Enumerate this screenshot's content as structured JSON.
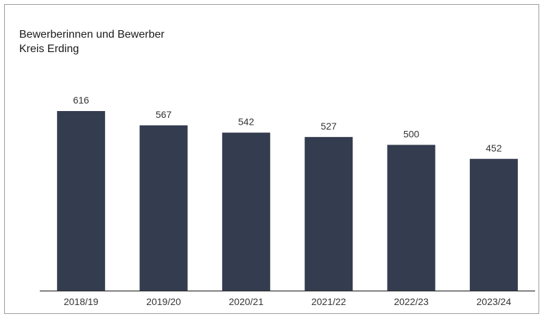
{
  "chart_data": {
    "type": "bar",
    "title_lines": [
      "Bewerberinnen und Bewerber",
      "Kreis Erding"
    ],
    "categories": [
      "2018/19",
      "2019/20",
      "2020/21",
      "2021/22",
      "2022/23",
      "2023/24"
    ],
    "values": [
      616,
      567,
      542,
      527,
      500,
      452
    ],
    "ylim": [
      0,
      616
    ],
    "grid": false,
    "bar_color": "#343c4f",
    "axis_color": "#333333"
  }
}
